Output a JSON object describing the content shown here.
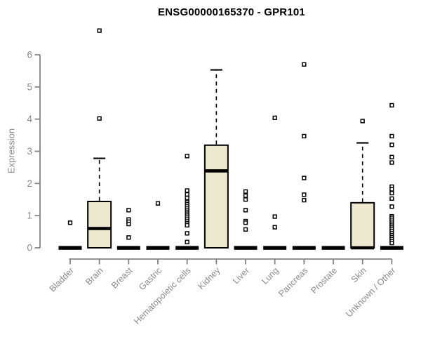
{
  "chart_data": {
    "type": "boxplot",
    "title": "ENSG00000165370 - GPR101",
    "ylabel": "Expression",
    "xlabel": "",
    "ylim": [
      0,
      6.9
    ],
    "yticks": [
      0,
      1,
      2,
      3,
      4,
      5,
      6
    ],
    "grid": false,
    "legend": false,
    "colors": {
      "box_fill": "#EDE8D0",
      "box_stroke": "#000000",
      "median": "#000000",
      "whisker": "#000000",
      "outlier_stroke": "#000000",
      "outlier_fill": "#ffffff",
      "axis": "#848484",
      "tick_label": "#8a8a8a",
      "title": "#000000",
      "background": "#ffffff"
    },
    "categories": [
      "Bladder",
      "Brain",
      "Breast",
      "Gastric",
      "Hematopoietic cells",
      "Kidney",
      "Liver",
      "Lung",
      "Pancreas",
      "Prostate",
      "Skin",
      "Unknown / Other"
    ],
    "boxes": [
      {
        "label": "Bladder",
        "q1": 0,
        "median": 0,
        "q3": 0,
        "whisker_low": 0,
        "whisker_high": 0,
        "outliers": [
          0.78
        ]
      },
      {
        "label": "Brain",
        "q1": 0,
        "median": 0.6,
        "q3": 1.44,
        "whisker_low": 0,
        "whisker_high": 2.78,
        "outliers": [
          4.02,
          6.75
        ]
      },
      {
        "label": "Breast",
        "q1": 0,
        "median": 0,
        "q3": 0,
        "whisker_low": 0,
        "whisker_high": 0,
        "outliers": [
          1.17,
          0.88,
          0.81,
          0.74,
          0.32
        ]
      },
      {
        "label": "Gastric",
        "q1": 0,
        "median": 0,
        "q3": 0,
        "whisker_low": 0,
        "whisker_high": 0,
        "outliers": [
          1.38
        ]
      },
      {
        "label": "Hematopoietic cells",
        "q1": 0,
        "median": 0,
        "q3": 0,
        "whisker_low": 0,
        "whisker_high": 0,
        "outliers": [
          2.85,
          1.78,
          1.66,
          1.55,
          1.42,
          1.36,
          1.3,
          1.24,
          1.18,
          1.12,
          1.06,
          1.0,
          0.94,
          0.88,
          0.82,
          0.76,
          0.7,
          0.45,
          0.18
        ]
      },
      {
        "label": "Kidney",
        "q1": 0,
        "median": 2.39,
        "q3": 3.19,
        "whisker_low": 0,
        "whisker_high": 5.53,
        "outliers": []
      },
      {
        "label": "Liver",
        "q1": 0,
        "median": 0,
        "q3": 0,
        "whisker_low": 0,
        "whisker_high": 0,
        "outliers": [
          1.75,
          1.62,
          1.5,
          1.17,
          0.83,
          0.78,
          0.57
        ]
      },
      {
        "label": "Lung",
        "q1": 0,
        "median": 0,
        "q3": 0,
        "whisker_low": 0,
        "whisker_high": 0,
        "outliers": [
          4.04,
          0.97,
          0.64
        ]
      },
      {
        "label": "Pancreas",
        "q1": 0,
        "median": 0,
        "q3": 0,
        "whisker_low": 0,
        "whisker_high": 0,
        "outliers": [
          5.7,
          3.47,
          2.17,
          1.65,
          1.48
        ]
      },
      {
        "label": "Prostate",
        "q1": 0,
        "median": 0,
        "q3": 0,
        "whisker_low": 0,
        "whisker_high": 0,
        "outliers": []
      },
      {
        "label": "Skin",
        "q1": 0,
        "median": 0,
        "q3": 1.4,
        "whisker_low": 0,
        "whisker_high": 3.26,
        "outliers": [
          3.94
        ]
      },
      {
        "label": "Unknown / Other",
        "q1": 0,
        "median": 0,
        "q3": 0,
        "whisker_low": 0,
        "whisker_high": 0,
        "outliers": [
          4.43,
          3.47,
          3.2,
          2.82,
          2.65,
          1.9,
          1.82,
          1.7,
          1.53,
          1.28,
          0.98,
          0.93,
          0.87,
          0.81,
          0.75,
          0.69,
          0.63,
          0.57,
          0.51,
          0.45,
          0.39,
          0.33,
          0.27,
          0.21,
          0.15
        ]
      }
    ]
  }
}
